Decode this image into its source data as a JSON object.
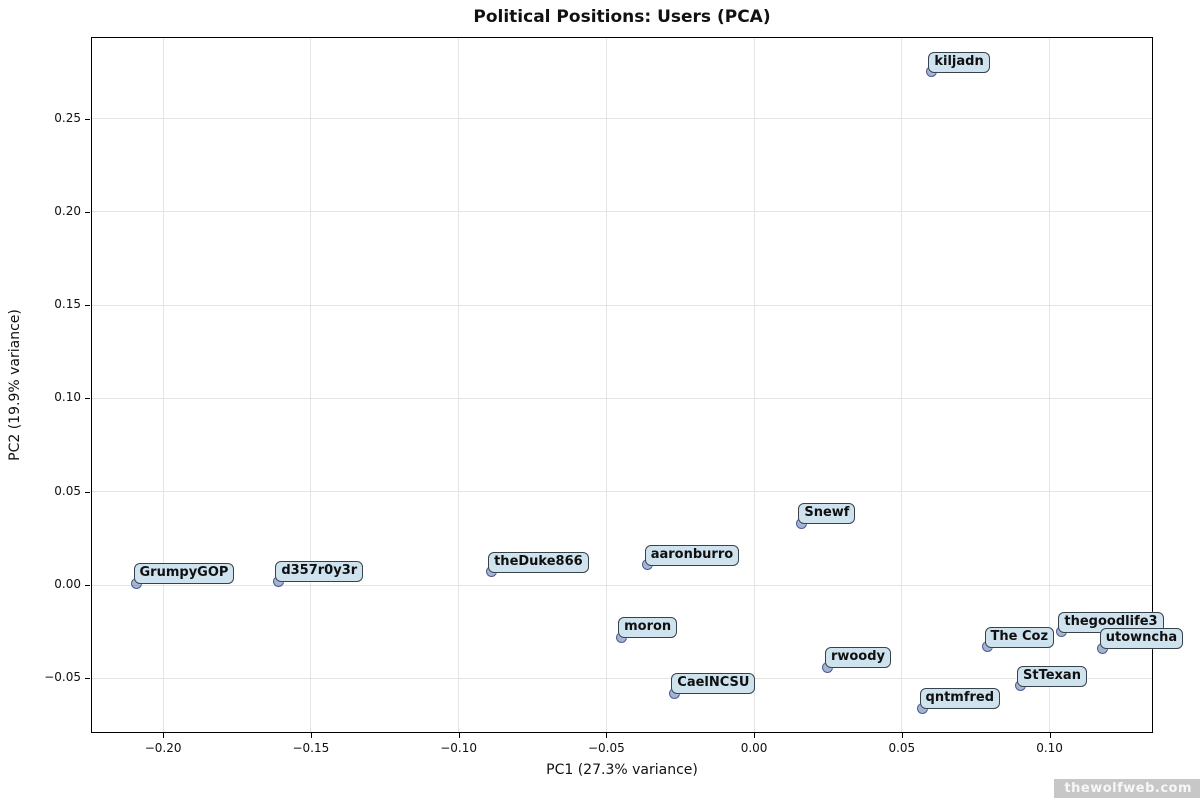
{
  "figure": {
    "title": "Political Positions: Users (PCA)",
    "watermark": "thewolfweb.com"
  },
  "chart_data": {
    "type": "scatter",
    "title": "Political Positions: Users (PCA)",
    "xlabel": "PC1 (27.3% variance)",
    "ylabel": "PC2 (19.9% variance)",
    "xlim": [
      -0.2244,
      0.135
    ],
    "ylim": [
      -0.0793,
      0.2937
    ],
    "grid": true,
    "legend": "none",
    "x_ticks": [
      -0.2,
      -0.15,
      -0.1,
      -0.05,
      0.0,
      0.05,
      0.1
    ],
    "x_tick_labels": [
      "−0.20",
      "−0.15",
      "−0.10",
      "−0.05",
      "0.00",
      "0.05",
      "0.10"
    ],
    "y_ticks": [
      -0.05,
      0.0,
      0.05,
      0.1,
      0.15,
      0.2,
      0.25
    ],
    "y_tick_labels": [
      "−0.05",
      "0.00",
      "0.05",
      "0.10",
      "0.15",
      "0.20",
      "0.25"
    ],
    "points": [
      {
        "label": "kiljadn",
        "x": 0.06,
        "y": 0.275
      },
      {
        "label": "Snewf",
        "x": 0.016,
        "y": 0.033
      },
      {
        "label": "aaronburro",
        "x": -0.036,
        "y": 0.011
      },
      {
        "label": "theDuke866",
        "x": -0.089,
        "y": 0.007
      },
      {
        "label": "d357r0y3r",
        "x": -0.161,
        "y": 0.002
      },
      {
        "label": "GrumpyGOP",
        "x": -0.209,
        "y": 0.001
      },
      {
        "label": "moron",
        "x": -0.045,
        "y": -0.028
      },
      {
        "label": "CaelNCSU",
        "x": -0.027,
        "y": -0.058
      },
      {
        "label": "rwoody",
        "x": 0.025,
        "y": -0.044
      },
      {
        "label": "qntmfred",
        "x": 0.057,
        "y": -0.066
      },
      {
        "label": "StTexan",
        "x": 0.09,
        "y": -0.054
      },
      {
        "label": "The Coz",
        "x": 0.079,
        "y": -0.033
      },
      {
        "label": "thegoodlife3",
        "x": 0.104,
        "y": -0.025
      },
      {
        "label": "utowncha",
        "x": 0.118,
        "y": -0.034
      }
    ],
    "colors": {
      "marker_fill": "rgba(100,130,180,0.6)",
      "marker_edge": "#303c82",
      "label_background": "#cfe3ef",
      "label_border": "#37424a",
      "gridline": "#e4e4e4",
      "spine": "#000000",
      "watermark_background": "#c7c7c7",
      "watermark_text": "#f7f7f7"
    }
  }
}
